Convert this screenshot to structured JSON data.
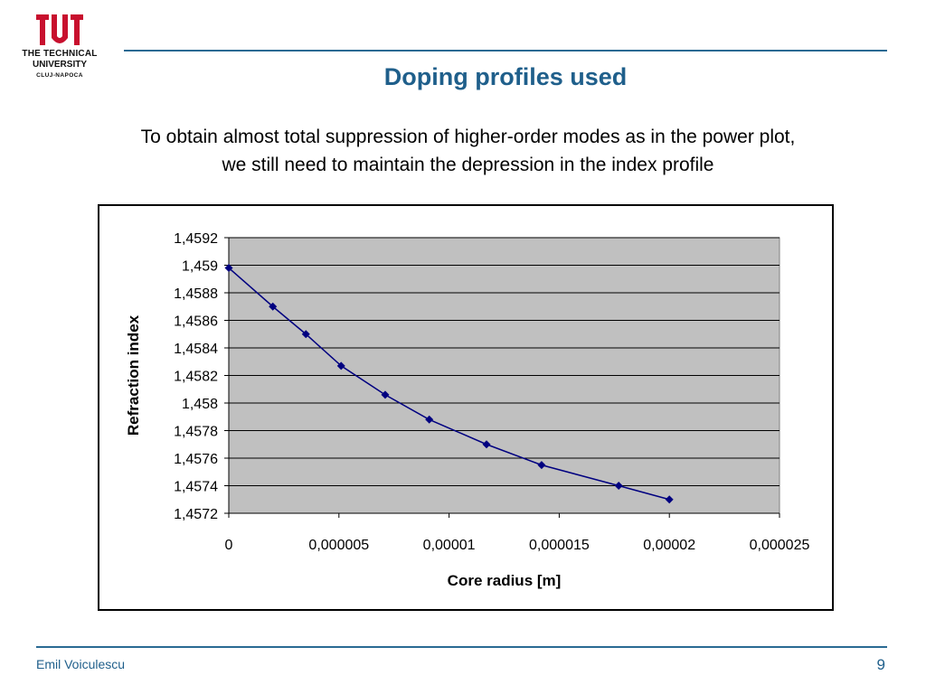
{
  "logo": {
    "line1": "THE TECHNICAL",
    "line2": "UNIVERSITY",
    "line3": "CLUJ-NAPOCA",
    "color": "#c8102e"
  },
  "slide": {
    "title": "Doping profiles used",
    "subtitle_line1": "To obtain almost total suppression of higher-order modes as in the power plot,",
    "subtitle_line2": "we still need to maintain the depression in the index profile",
    "author": "Emil Voiculescu",
    "page_number": "9",
    "accent_color": "#1f5f8b"
  },
  "chart_data": {
    "type": "line",
    "title": "",
    "xlabel": "Core radius [m]",
    "ylabel": "Refraction index",
    "xlim": [
      0,
      2.5e-05
    ],
    "ylim": [
      1.4572,
      1.4592
    ],
    "x_ticks": [
      0,
      5e-06,
      1e-05,
      1.5e-05,
      2e-05,
      2.5e-05
    ],
    "x_tick_labels": [
      "0",
      "0,000005",
      "0,00001",
      "0,000015",
      "0,00002",
      "0,000025"
    ],
    "y_ticks": [
      1.4572,
      1.4574,
      1.4576,
      1.4578,
      1.458,
      1.4582,
      1.4584,
      1.4586,
      1.4588,
      1.459,
      1.4592
    ],
    "y_tick_labels": [
      "1,4572",
      "1,4574",
      "1,4576",
      "1,4578",
      "1,458",
      "1,4582",
      "1,4584",
      "1,4586",
      "1,4588",
      "1,459",
      "1,4592"
    ],
    "grid": "horizontal",
    "plot_background": "#c0c0c0",
    "series": [
      {
        "color": "#000080",
        "x": [
          0,
          2e-06,
          3.5e-06,
          5.1e-06,
          7.1e-06,
          9.1e-06,
          1.17e-05,
          1.42e-05,
          1.77e-05,
          2e-05
        ],
        "y": [
          1.45898,
          1.4587,
          1.4585,
          1.45827,
          1.45806,
          1.45788,
          1.4577,
          1.45755,
          1.4574,
          1.4573
        ]
      }
    ]
  }
}
